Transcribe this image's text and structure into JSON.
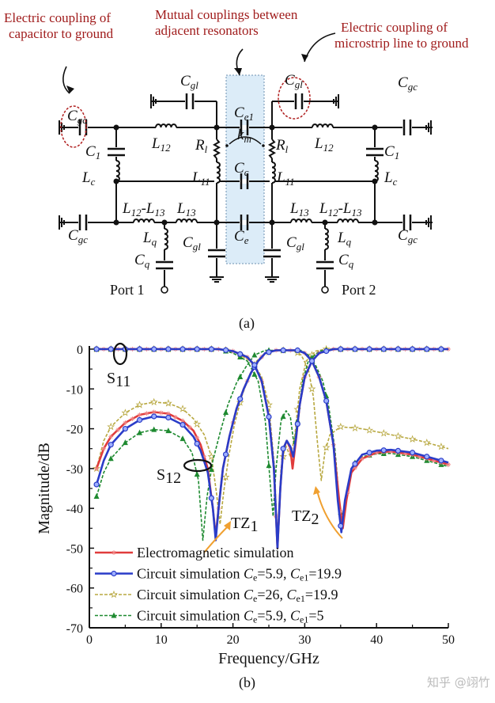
{
  "figure_a": {
    "panel_label": "(a)",
    "notes": [
      {
        "lines": [
          "Electric coupling of",
          "capacitor to ground"
        ]
      },
      {
        "lines": [
          "Mutual couplings between",
          "adjacent resonators"
        ]
      },
      {
        "lines": [
          "Electric coupling of",
          "microstrip line to ground"
        ]
      }
    ],
    "labels": [
      {
        "main": "C",
        "sub": "gc"
      },
      {
        "main": "C",
        "sub": "gl"
      },
      {
        "main": "C",
        "sub": "e1"
      },
      {
        "main": "C",
        "sub": "gl"
      },
      {
        "main": "C",
        "sub": "gc"
      },
      {
        "main": "C",
        "sub": "1"
      },
      {
        "main": "L",
        "sub": "12"
      },
      {
        "main": "R",
        "sub": "l"
      },
      {
        "main": "k",
        "sub": "m"
      },
      {
        "main": "R",
        "sub": "l"
      },
      {
        "main": "L",
        "sub": "12"
      },
      {
        "main": "C",
        "sub": "1"
      },
      {
        "main": "L",
        "sub": "c"
      },
      {
        "main": "L",
        "sub": "11"
      },
      {
        "main": "C",
        "sub": "c"
      },
      {
        "main": "L",
        "sub": "11"
      },
      {
        "main": "L",
        "sub": "c"
      },
      {
        "main": "L",
        "sub": "12",
        "rest": "-L",
        "sub2": "13"
      },
      {
        "main": "L",
        "sub": "13"
      },
      {
        "main": "L",
        "sub": "13"
      },
      {
        "main": "L",
        "sub": "12",
        "rest": "-L",
        "sub2": "13"
      },
      {
        "main": "C",
        "sub": "gc"
      },
      {
        "main": "L",
        "sub": "q"
      },
      {
        "main": "C",
        "sub": "gl"
      },
      {
        "main": "C",
        "sub": "e"
      },
      {
        "main": "C",
        "sub": "gl"
      },
      {
        "main": "L",
        "sub": "q"
      },
      {
        "main": "C",
        "sub": "gc"
      },
      {
        "main": "C",
        "sub": "q"
      },
      {
        "main": "C",
        "sub": "q"
      }
    ],
    "ports": [
      "Port 1",
      "Port 2"
    ],
    "colors": {
      "note": "#a01c1c",
      "coupling_box": "#dcecf8",
      "highlight_ellipse": "#b02020"
    }
  },
  "figure_b": {
    "panel_label": "(b)",
    "annotations": {
      "s11": {
        "main": "S",
        "sub": "11"
      },
      "s12": {
        "main": "S",
        "sub": "12"
      },
      "tz1": {
        "main": "TZ",
        "sub": "1"
      },
      "tz2": {
        "main": "TZ",
        "sub": "2"
      }
    }
  },
  "watermark": "知乎 @翊竹",
  "chart_data": {
    "type": "line",
    "xlabel": "Frequency/GHz",
    "ylabel": "Magnitude/dB",
    "xlim": [
      0,
      50
    ],
    "ylim": [
      -70,
      0
    ],
    "xticks": [
      0,
      10,
      20,
      30,
      40,
      50
    ],
    "yticks": [
      0,
      -10,
      -20,
      -30,
      -40,
      -50,
      -60,
      -70
    ],
    "grid": false,
    "legend_placement": "bottom-left",
    "series": [
      {
        "name": "Electromagnetic simulation",
        "color": "#e03c3c",
        "dash": "solid",
        "marker": "asterisk",
        "s21": [
          [
            1,
            -30
          ],
          [
            2,
            -25
          ],
          [
            3,
            -22
          ],
          [
            5,
            -18.5
          ],
          [
            7,
            -16.5
          ],
          [
            9,
            -15.8
          ],
          [
            11,
            -16.2
          ],
          [
            13,
            -18
          ],
          [
            14.5,
            -20.5
          ],
          [
            15.5,
            -24
          ],
          [
            16.5,
            -30
          ],
          [
            17.2,
            -40
          ],
          [
            17.6,
            -47
          ],
          [
            18,
            -40
          ],
          [
            18.6,
            -30
          ],
          [
            19.5,
            -22
          ],
          [
            20.5,
            -15
          ],
          [
            21.5,
            -10
          ],
          [
            22.5,
            -6
          ],
          [
            23.5,
            -3
          ],
          [
            24.5,
            -1
          ],
          [
            26,
            -0.3
          ],
          [
            29,
            -0.3
          ],
          [
            30,
            -1
          ],
          [
            31,
            -3
          ],
          [
            32,
            -7
          ],
          [
            33,
            -13
          ],
          [
            34,
            -24
          ],
          [
            34.8,
            -38
          ],
          [
            35.3,
            -45
          ],
          [
            35.8,
            -38
          ],
          [
            36.5,
            -31
          ],
          [
            38,
            -27.5
          ],
          [
            40,
            -26
          ],
          [
            42,
            -25.7
          ],
          [
            45,
            -26.5
          ],
          [
            50,
            -29
          ]
        ],
        "s11": [
          [
            1,
            0
          ],
          [
            18,
            0
          ],
          [
            20,
            -0.5
          ],
          [
            22,
            -2
          ],
          [
            23,
            -4
          ],
          [
            24,
            -8
          ],
          [
            25,
            -17
          ],
          [
            25.7,
            -30
          ],
          [
            26.2,
            -50
          ],
          [
            26.6,
            -35
          ],
          [
            27,
            -25
          ],
          [
            27.5,
            -23
          ],
          [
            28,
            -25
          ],
          [
            28.3,
            -30
          ],
          [
            28.7,
            -24
          ],
          [
            29.3,
            -14
          ],
          [
            30,
            -7
          ],
          [
            31,
            -3
          ],
          [
            32,
            -1
          ],
          [
            34,
            0
          ],
          [
            50,
            0
          ]
        ]
      },
      {
        "name": "Circuit simulation Ce=5.9, Ce1=19.9",
        "color": "#2a3cc8",
        "dash": "solid",
        "marker": "circle",
        "s21": [
          [
            1,
            -34
          ],
          [
            2,
            -28
          ],
          [
            3,
            -24
          ],
          [
            5,
            -20
          ],
          [
            7,
            -17.8
          ],
          [
            9,
            -16.9
          ],
          [
            11,
            -17.2
          ],
          [
            13,
            -19
          ],
          [
            14.5,
            -22
          ],
          [
            15.5,
            -25.5
          ],
          [
            16.5,
            -31
          ],
          [
            17.2,
            -40
          ],
          [
            17.6,
            -48
          ],
          [
            18,
            -40
          ],
          [
            18.6,
            -30
          ],
          [
            19.5,
            -22
          ],
          [
            20.5,
            -15
          ],
          [
            21.5,
            -10
          ],
          [
            22.5,
            -6
          ],
          [
            23.5,
            -3
          ],
          [
            24.5,
            -1
          ],
          [
            26,
            -0.3
          ],
          [
            29,
            -0.3
          ],
          [
            30,
            -1
          ],
          [
            31,
            -3
          ],
          [
            32,
            -7
          ],
          [
            33,
            -13
          ],
          [
            34,
            -24
          ],
          [
            34.6,
            -38
          ],
          [
            35.1,
            -46
          ],
          [
            35.6,
            -38
          ],
          [
            36.5,
            -30
          ],
          [
            38,
            -26.5
          ],
          [
            40,
            -25.5
          ],
          [
            42,
            -25.3
          ],
          [
            45,
            -26
          ],
          [
            50,
            -28.5
          ]
        ],
        "s11": [
          [
            1,
            0
          ],
          [
            18,
            0
          ],
          [
            20,
            -0.5
          ],
          [
            22,
            -2
          ],
          [
            23,
            -4
          ],
          [
            24,
            -8
          ],
          [
            25,
            -17
          ],
          [
            25.7,
            -30
          ],
          [
            26.2,
            -50
          ],
          [
            26.6,
            -35
          ],
          [
            27,
            -25
          ],
          [
            27.5,
            -23
          ],
          [
            28,
            -24.5
          ],
          [
            28.4,
            -27
          ],
          [
            28.8,
            -22
          ],
          [
            29.3,
            -14
          ],
          [
            30,
            -7
          ],
          [
            31,
            -3
          ],
          [
            32,
            -1
          ],
          [
            34,
            0
          ],
          [
            50,
            0
          ]
        ]
      },
      {
        "name": "Circuit simulation Ce=26, Ce1=19.9",
        "color": "#b8a840",
        "dash": "dashed",
        "marker": "star",
        "s21": [
          [
            1,
            -30
          ],
          [
            2,
            -23
          ],
          [
            3,
            -19.5
          ],
          [
            5,
            -16
          ],
          [
            7,
            -14
          ],
          [
            9,
            -13.3
          ],
          [
            11,
            -13.6
          ],
          [
            13,
            -15
          ],
          [
            14.5,
            -17.5
          ],
          [
            16,
            -21.5
          ],
          [
            17,
            -27
          ],
          [
            17.7,
            -36
          ],
          [
            18.2,
            -44
          ],
          [
            18.7,
            -36
          ],
          [
            19.4,
            -27
          ],
          [
            20.2,
            -19
          ],
          [
            21.2,
            -12
          ],
          [
            22.3,
            -6.5
          ],
          [
            23.3,
            -3
          ],
          [
            24.5,
            -1
          ],
          [
            26,
            -0.3
          ],
          [
            28.5,
            -0.3
          ],
          [
            29.5,
            -1.5
          ],
          [
            30.5,
            -5
          ],
          [
            31.2,
            -12
          ],
          [
            31.8,
            -24
          ],
          [
            32.3,
            -33
          ],
          [
            32.8,
            -26
          ],
          [
            33.5,
            -21.5
          ],
          [
            35,
            -19.5
          ],
          [
            38,
            -20
          ],
          [
            42,
            -21.5
          ],
          [
            46,
            -23
          ],
          [
            50,
            -25
          ]
        ],
        "s11": [
          [
            1,
            0
          ],
          [
            18,
            0
          ],
          [
            20,
            -0.5
          ],
          [
            22,
            -2.5
          ],
          [
            23,
            -4
          ],
          [
            24,
            -7
          ],
          [
            25,
            -14
          ],
          [
            25.8,
            -30
          ],
          [
            26.2,
            -48
          ],
          [
            26.7,
            -30
          ],
          [
            27.3,
            -24
          ],
          [
            28,
            -27
          ],
          [
            28.6,
            -22
          ],
          [
            29.3,
            -10
          ],
          [
            30.2,
            -3
          ],
          [
            31.5,
            -0.5
          ],
          [
            33,
            0
          ],
          [
            50,
            0
          ]
        ]
      },
      {
        "name": "Circuit simulation Ce=5.9, Ce1=5",
        "color": "#1e8a30",
        "dash": "dashed",
        "marker": "triangle",
        "s21": [
          [
            1,
            -37
          ],
          [
            2,
            -31
          ],
          [
            3,
            -27.5
          ],
          [
            5,
            -23.5
          ],
          [
            7,
            -21
          ],
          [
            9,
            -20.2
          ],
          [
            11,
            -20.5
          ],
          [
            13,
            -22.5
          ],
          [
            14.3,
            -26
          ],
          [
            15.2,
            -33
          ],
          [
            15.8,
            -48
          ],
          [
            16.4,
            -37
          ],
          [
            17.2,
            -28
          ],
          [
            18.2,
            -21
          ],
          [
            19.3,
            -14
          ],
          [
            20.5,
            -8.5
          ],
          [
            21.8,
            -4.5
          ],
          [
            23,
            -1.5
          ],
          [
            24.5,
            -0.3
          ],
          [
            29.5,
            -0.3
          ],
          [
            30.5,
            -1.5
          ],
          [
            31.5,
            -4
          ],
          [
            32.5,
            -8
          ],
          [
            33.3,
            -14
          ],
          [
            34.2,
            -25
          ],
          [
            34.8,
            -38
          ],
          [
            35.2,
            -44
          ],
          [
            35.8,
            -36
          ],
          [
            36.7,
            -29
          ],
          [
            38,
            -27
          ],
          [
            40,
            -26.3
          ],
          [
            42,
            -26.2
          ],
          [
            45,
            -27
          ],
          [
            50,
            -29.5
          ]
        ],
        "s11": [
          [
            1,
            0
          ],
          [
            18,
            0
          ],
          [
            20,
            -1
          ],
          [
            22,
            -3
          ],
          [
            23.5,
            -8
          ],
          [
            24.5,
            -18
          ],
          [
            25.3,
            -36
          ],
          [
            25.6,
            -42
          ],
          [
            26,
            -30
          ],
          [
            26.7,
            -18
          ],
          [
            27.4,
            -15.5
          ],
          [
            28,
            -17
          ],
          [
            28.5,
            -24
          ],
          [
            29,
            -18
          ],
          [
            29.7,
            -8
          ],
          [
            30.5,
            -3
          ],
          [
            32,
            -0.5
          ],
          [
            34,
            0
          ],
          [
            50,
            0
          ]
        ]
      }
    ],
    "legend": [
      {
        "text": "Electromagnetic simulation"
      },
      {
        "text": "Circuit simulation ",
        "p1": {
          "main": "C",
          "sub": "e",
          "val": "=5.9, "
        },
        "p2": {
          "main": "C",
          "sub": "e1",
          "val": "=19.9"
        }
      },
      {
        "text": "Circuit simulation ",
        "p1": {
          "main": "C",
          "sub": "e",
          "val": "=26, "
        },
        "p2": {
          "main": "C",
          "sub": "e1",
          "val": "=19.9"
        }
      },
      {
        "text": "Circuit simulation ",
        "p1": {
          "main": "C",
          "sub": "e",
          "val": "=5.9, "
        },
        "p2": {
          "main": "C",
          "sub": "e1",
          "val": "=5"
        }
      }
    ],
    "annotation_color": "#f0a030"
  }
}
